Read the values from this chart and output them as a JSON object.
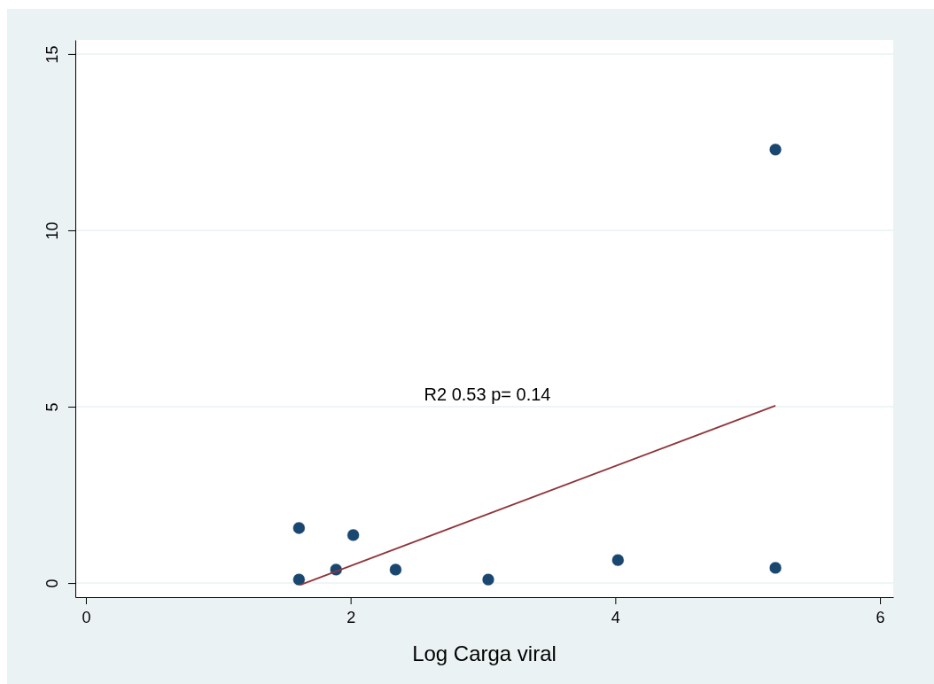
{
  "chart_data": {
    "type": "scatter",
    "xlabel": "Log Carga viral",
    "xlim": [
      -0.08,
      6.1
    ],
    "ylim": [
      -0.4,
      15.4
    ],
    "xticks": [
      0,
      2,
      4,
      6
    ],
    "yticks": [
      0,
      5,
      10,
      15
    ],
    "grid": "y",
    "series": [
      {
        "marker": "circle",
        "color": "#1a476f",
        "x": [
          1.61,
          1.61,
          1.89,
          2.02,
          2.34,
          3.04,
          4.02,
          5.21,
          5.21
        ],
        "values": [
          0.1,
          1.56,
          0.38,
          1.36,
          0.38,
          0.1,
          0.65,
          12.29,
          0.43
        ]
      },
      {
        "type": "line",
        "color": "#90353b",
        "x": [
          1.62,
          5.21
        ],
        "values": [
          -0.05,
          5.03
        ]
      }
    ],
    "annotations": [
      "R2 0.53 p= 0.14"
    ]
  }
}
